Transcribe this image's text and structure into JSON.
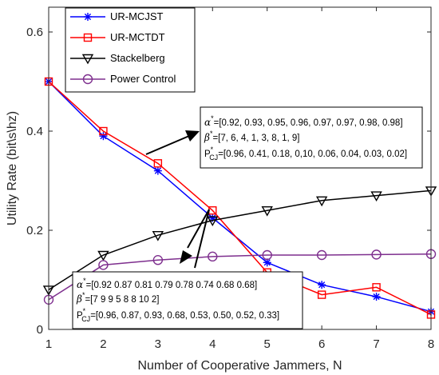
{
  "chart_data": {
    "type": "line",
    "xlabel": "Number of Cooperative Jammers, N",
    "ylabel": "Utility Rate (bit\\s\\hz)",
    "xlim": [
      1,
      8
    ],
    "ylim": [
      0,
      0.65
    ],
    "x_ticks": [
      "1",
      "2",
      "3",
      "4",
      "5",
      "6",
      "7",
      "8"
    ],
    "y_ticks": [
      {
        "value": 0,
        "label": "0"
      },
      {
        "value": 0.2,
        "label": "0.2"
      },
      {
        "value": 0.4,
        "label": "0.4"
      },
      {
        "value": 0.6,
        "label": "0.6"
      }
    ],
    "grid": false,
    "legend_position": "top-left",
    "x": [
      1,
      2,
      3,
      4,
      5,
      6,
      7,
      8
    ],
    "series": [
      {
        "name": "UR-MCJST",
        "color": "#0000ff",
        "marker": "asterisk",
        "values": [
          0.5,
          0.39,
          0.32,
          0.225,
          0.135,
          0.09,
          0.066,
          0.036
        ]
      },
      {
        "name": "UR-MCTDT",
        "color": "#ff0000",
        "marker": "square",
        "values": [
          0.5,
          0.4,
          0.335,
          0.24,
          0.115,
          0.07,
          0.085,
          0.03
        ]
      },
      {
        "name": "Stackelberg",
        "color": "#000000",
        "marker": "triangle-down",
        "values": [
          0.08,
          0.15,
          0.19,
          0.22,
          0.24,
          0.26,
          0.27,
          0.28
        ]
      },
      {
        "name": "Power Control",
        "color": "#7e2f8e",
        "marker": "circle",
        "values": [
          0.06,
          0.13,
          0.14,
          0.147,
          0.15,
          0.15,
          0.151,
          0.152
        ]
      }
    ],
    "annotations": [
      {
        "alpha_label": "α",
        "alpha_text": "=[0.92, 0.93, 0.95, 0.96, 0.97, 0.97, 0.98, 0.98]",
        "beta_label": "β",
        "beta_text": "=[7, 6, 4, 1, 3, 8, 1, 9]",
        "p_label": "P",
        "p_sub": "CJ",
        "p_text": "=[0.96, 0.41,  0.18, 0,10, 0.06, 0.04, 0.03, 0.02]",
        "superscript": "*"
      },
      {
        "alpha_label": "α",
        "alpha_text": "=[0.92 0.87 0.81 0.79 0.78 0.74  0.68 0.68]",
        "beta_label": "β",
        "beta_text": "=[7 9 9 5 8 8 10 2]",
        "p_label": "P",
        "p_sub": "CJ",
        "p_text": "=[0.96, 0.87, 0.93, 0.68, 0.53, 0.50, 0.52, 0.33]",
        "superscript": "*"
      }
    ]
  }
}
